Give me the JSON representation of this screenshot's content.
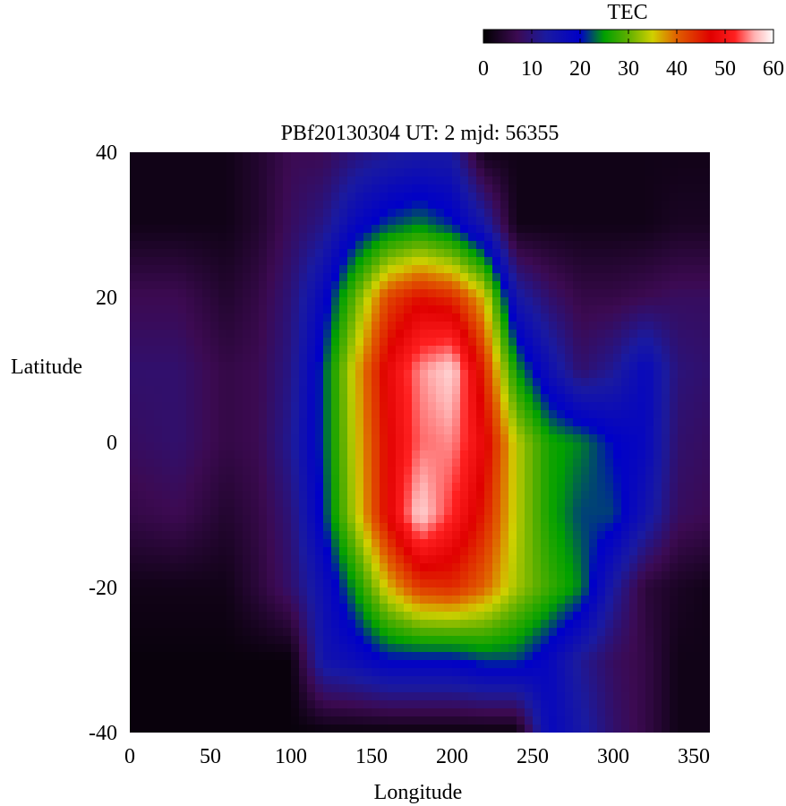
{
  "chart_data": {
    "type": "heatmap",
    "title": "PBf20130304  UT: 2  mjd: 56355",
    "xlabel": "Longitude",
    "ylabel": "Latitude",
    "xlim": [
      0,
      360
    ],
    "ylim": [
      -40,
      40
    ],
    "x_ticks": [
      0,
      50,
      100,
      150,
      200,
      250,
      300,
      350
    ],
    "y_ticks": [
      -40,
      -20,
      0,
      20,
      40
    ],
    "grid": false,
    "colorbar": {
      "label": "TEC",
      "range": [
        0,
        60
      ],
      "ticks": [
        0,
        10,
        20,
        30,
        40,
        50,
        60
      ],
      "colormap": [
        {
          "v": 0,
          "color": "#000000"
        },
        {
          "v": 7,
          "color": "#3c0a52"
        },
        {
          "v": 13,
          "color": "#1a1aa0"
        },
        {
          "v": 20,
          "color": "#0000c8"
        },
        {
          "v": 25,
          "color": "#00a000"
        },
        {
          "v": 30,
          "color": "#60b000"
        },
        {
          "v": 35,
          "color": "#d0d000"
        },
        {
          "v": 40,
          "color": "#e06000"
        },
        {
          "v": 47,
          "color": "#e00000"
        },
        {
          "v": 52,
          "color": "#ff2020"
        },
        {
          "v": 56,
          "color": "#ffb0b0"
        },
        {
          "v": 60,
          "color": "#ffffff"
        }
      ]
    },
    "longitudes": [
      0,
      30,
      60,
      80,
      100,
      120,
      140,
      160,
      180,
      200,
      220,
      240,
      260,
      280,
      300,
      320,
      340,
      360
    ],
    "latitudes": [
      40,
      30,
      20,
      10,
      0,
      -10,
      -20,
      -30,
      -40
    ],
    "tec": [
      [
        2,
        2,
        2,
        4,
        7,
        7,
        10,
        12,
        13,
        13,
        2,
        2,
        2,
        2,
        2,
        2,
        2,
        2
      ],
      [
        2,
        2,
        2,
        4,
        8,
        11,
        18,
        22,
        24,
        21,
        14,
        2,
        2,
        2,
        2,
        2,
        3,
        3
      ],
      [
        7,
        7,
        4,
        6,
        10,
        18,
        30,
        42,
        46,
        44,
        36,
        14,
        9,
        6,
        6,
        7,
        8,
        8
      ],
      [
        9,
        9,
        6,
        7,
        11,
        22,
        36,
        48,
        55,
        58,
        44,
        25,
        16,
        9,
        12,
        18,
        10,
        9
      ],
      [
        8,
        9,
        6,
        7,
        12,
        22,
        35,
        47,
        54,
        55,
        48,
        34,
        26,
        24,
        20,
        18,
        9,
        8
      ],
      [
        6,
        7,
        4,
        6,
        10,
        21,
        34,
        47,
        58,
        52,
        45,
        34,
        26,
        22,
        22,
        15,
        8,
        7
      ],
      [
        2,
        2,
        2,
        5,
        9,
        16,
        25,
        36,
        43,
        44,
        40,
        33,
        28,
        24,
        13,
        5,
        3,
        2
      ],
      [
        1,
        1,
        1,
        1,
        1,
        15,
        17,
        20,
        20,
        20,
        22,
        22,
        18,
        12,
        8,
        6,
        2,
        2
      ],
      [
        1,
        1,
        1,
        1,
        1,
        1,
        1,
        1,
        1,
        1,
        1,
        1,
        18,
        14,
        9,
        6,
        2,
        2
      ]
    ]
  }
}
